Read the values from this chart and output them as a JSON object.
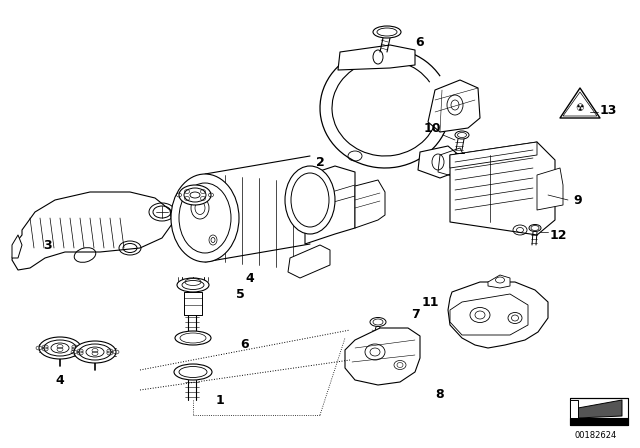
{
  "bg_color": "#ffffff",
  "line_color": "#000000",
  "text_color": "#000000",
  "diagram_id": "00182624",
  "figsize": [
    6.4,
    4.48
  ],
  "dpi": 100
}
